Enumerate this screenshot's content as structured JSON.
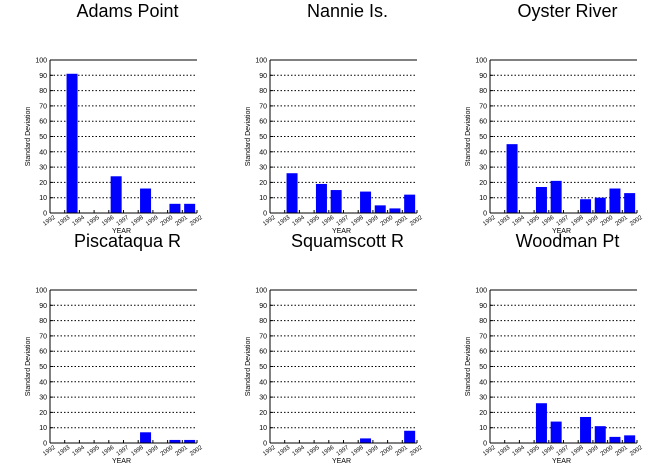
{
  "chart_data": [
    {
      "type": "bar",
      "title": "Adams Point",
      "xlabel": "YEAR",
      "ylabel": "Standard Deviation",
      "ylim": [
        0,
        100
      ],
      "yticks": [
        0,
        10,
        20,
        30,
        40,
        50,
        60,
        70,
        80,
        90,
        100
      ],
      "categories": [
        "1992",
        "1993",
        "1994",
        "1995",
        "1996",
        "1997",
        "1998",
        "1999",
        "2000",
        "2001",
        "2002"
      ],
      "values": [
        null,
        91,
        null,
        null,
        24,
        null,
        16,
        null,
        6,
        6,
        null
      ],
      "bar_color": "#0000ff",
      "grid": "dotted-horizontal"
    },
    {
      "type": "bar",
      "title": "Nannie Is.",
      "xlabel": "YEAR",
      "ylabel": "Standard Deviation",
      "ylim": [
        0,
        100
      ],
      "yticks": [
        0,
        10,
        20,
        30,
        40,
        50,
        60,
        70,
        80,
        90,
        100
      ],
      "categories": [
        "1992",
        "1993",
        "1994",
        "1995",
        "1996",
        "1997",
        "1998",
        "1999",
        "2000",
        "2001",
        "2002"
      ],
      "values": [
        null,
        26,
        null,
        19,
        15,
        null,
        14,
        5,
        3,
        12,
        null
      ],
      "bar_color": "#0000ff",
      "grid": "dotted-horizontal"
    },
    {
      "type": "bar",
      "title": "Oyster River",
      "xlabel": "YEAR",
      "ylabel": "Standard Deviation",
      "ylim": [
        0,
        100
      ],
      "yticks": [
        0,
        10,
        20,
        30,
        40,
        50,
        60,
        70,
        80,
        90,
        100
      ],
      "categories": [
        "1992",
        "1993",
        "1994",
        "1995",
        "1996",
        "1997",
        "1998",
        "1999",
        "2000",
        "2001",
        "2002"
      ],
      "values": [
        null,
        45,
        null,
        17,
        21,
        null,
        9,
        10,
        16,
        13,
        null
      ],
      "bar_color": "#0000ff",
      "grid": "dotted-horizontal"
    },
    {
      "type": "bar",
      "title": "Piscataqua R",
      "xlabel": "YEAR",
      "ylabel": "Standard Deviation",
      "ylim": [
        0,
        100
      ],
      "yticks": [
        0,
        10,
        20,
        30,
        40,
        50,
        60,
        70,
        80,
        90,
        100
      ],
      "categories": [
        "1992",
        "1993",
        "1994",
        "1995",
        "1996",
        "1997",
        "1998",
        "1999",
        "2000",
        "2001",
        "2002"
      ],
      "values": [
        null,
        null,
        null,
        null,
        null,
        null,
        7,
        null,
        2,
        2,
        null
      ],
      "bar_color": "#0000ff",
      "grid": "dotted-horizontal"
    },
    {
      "type": "bar",
      "title": "Squamscott R",
      "xlabel": "YEAR",
      "ylabel": "Standard Deviation",
      "ylim": [
        0,
        100
      ],
      "yticks": [
        0,
        10,
        20,
        30,
        40,
        50,
        60,
        70,
        80,
        90,
        100
      ],
      "categories": [
        "1992",
        "1993",
        "1994",
        "1995",
        "1996",
        "1997",
        "1998",
        "1999",
        "2000",
        "2001",
        "2002"
      ],
      "values": [
        null,
        null,
        null,
        null,
        null,
        null,
        3,
        null,
        null,
        8,
        null
      ],
      "bar_color": "#0000ff",
      "grid": "dotted-horizontal"
    },
    {
      "type": "bar",
      "title": "Woodman Pt",
      "xlabel": "YEAR",
      "ylabel": "Standard Deviation",
      "ylim": [
        0,
        100
      ],
      "yticks": [
        0,
        10,
        20,
        30,
        40,
        50,
        60,
        70,
        80,
        90,
        100
      ],
      "categories": [
        "1992",
        "1993",
        "1994",
        "1995",
        "1996",
        "1997",
        "1998",
        "1999",
        "2000",
        "2001",
        "2002"
      ],
      "values": [
        null,
        null,
        null,
        26,
        14,
        null,
        17,
        11,
        4,
        5,
        null
      ],
      "bar_color": "#0000ff",
      "grid": "dotted-horizontal"
    }
  ]
}
